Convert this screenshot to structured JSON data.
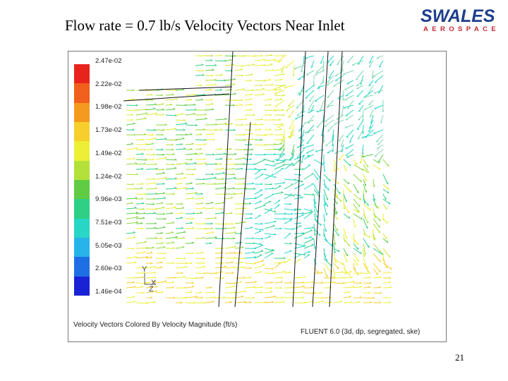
{
  "slide": {
    "title": "Flow rate = 0.7 lb/s Velocity Vectors Near Inlet",
    "page_number": "21"
  },
  "logo": {
    "top_text": "SWALES",
    "bottom_text": "AEROSPACE"
  },
  "visualization": {
    "colorbar_labels": [
      "2.47e-02",
      "2.22e-02",
      "1.98e-02",
      "1.73e-02",
      "1.49e-02",
      "1.24e-02",
      "9.96e-03",
      "7.51e-03",
      "5.05e-03",
      "2.60e-03",
      "1.46e-04"
    ],
    "colorbar_colors": [
      "#e8231c",
      "#f1601c",
      "#f59a1f",
      "#f7cf2d",
      "#ecef35",
      "#b3e13a",
      "#5fcc44",
      "#2fcf86",
      "#28d6c6",
      "#28b3ea",
      "#1f6fe4",
      "#1a22d6"
    ],
    "caption_left": "Velocity Vectors Colored By Velocity Magnitude (ft/s)",
    "caption_right": "FLUENT 6.0 (3d, dp, segregated, ske)",
    "axis_labels": {
      "y": "Y",
      "x": "X",
      "z": "Z"
    }
  }
}
